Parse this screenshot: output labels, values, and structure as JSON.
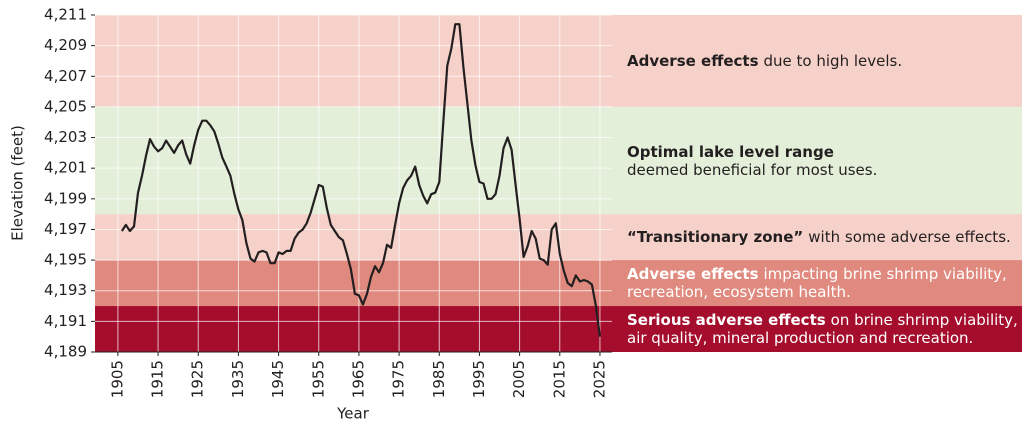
{
  "chart_data": {
    "type": "line",
    "x_label": "Year",
    "y_label": "Elevation (feet)",
    "color": "#231f20",
    "xlim": [
      1899.3,
      2028
    ],
    "ylim": [
      4189,
      4211
    ],
    "xticks": [
      1905,
      1915,
      1925,
      1935,
      1945,
      1955,
      1965,
      1975,
      1985,
      1995,
      2005,
      2015,
      2025
    ],
    "yticks": [
      {
        "value": 4189,
        "label": "4,189"
      },
      {
        "value": 4191,
        "label": "4,191"
      },
      {
        "value": 4193,
        "label": "4,193"
      },
      {
        "value": 4195,
        "label": "4,195"
      },
      {
        "value": 4197,
        "label": "4,197"
      },
      {
        "value": 4199,
        "label": "4,199"
      },
      {
        "value": 4201,
        "label": "4,201"
      },
      {
        "value": 4203,
        "label": "4,203"
      },
      {
        "value": 4205,
        "label": "4,205"
      },
      {
        "value": 4207,
        "label": "4,207"
      },
      {
        "value": 4209,
        "label": "4,209"
      },
      {
        "value": 4211,
        "label": "4,211"
      }
    ],
    "grid": true,
    "zones": [
      {
        "from": 4205,
        "to": 4211,
        "color": "#f6d1c9",
        "text_color": "#231f20",
        "bold": "Adverse effects",
        "text": "due to high levels.",
        "newline": false
      },
      {
        "from": 4198,
        "to": 4205,
        "color": "#e3efd9",
        "text_color": "#231f20",
        "bold": "Optimal lake level range",
        "text": "deemed beneficial for most uses.",
        "newline": true
      },
      {
        "from": 4195,
        "to": 4198,
        "color": "#f6d1c9",
        "text_color": "#231f20",
        "bold": "“Transitionary zone”",
        "text": "with some adverse effects.",
        "newline": false
      },
      {
        "from": 4192,
        "to": 4195,
        "color": "#e08a7f",
        "text_color": "#ffffff",
        "bold": "Adverse effects",
        "text": "impacting brine shrimp viability, recreation, ecosystem health.",
        "newline": false
      },
      {
        "from": 4189,
        "to": 4192,
        "color": "#a50d2d",
        "text_color": "#ffffff",
        "bold": "Serious adverse effects",
        "text": "on brine shrimp viability, air quality, mineral production and recreation.",
        "newline": false
      }
    ],
    "x": [
      1906,
      1907,
      1908,
      1909,
      1910,
      1911,
      1912,
      1913,
      1914,
      1915,
      1916,
      1917,
      1918,
      1919,
      1920,
      1921,
      1922,
      1923,
      1924,
      1925,
      1926,
      1927,
      1928,
      1929,
      1930,
      1931,
      1932,
      1933,
      1934,
      1935,
      1936,
      1937,
      1938,
      1939,
      1940,
      1941,
      1942,
      1943,
      1944,
      1945,
      1946,
      1947,
      1948,
      1949,
      1950,
      1951,
      1952,
      1953,
      1954,
      1955,
      1956,
      1957,
      1958,
      1959,
      1960,
      1961,
      1962,
      1963,
      1964,
      1965,
      1966,
      1967,
      1968,
      1969,
      1970,
      1971,
      1972,
      1973,
      1974,
      1975,
      1976,
      1977,
      1978,
      1979,
      1980,
      1981,
      1982,
      1983,
      1984,
      1985,
      1986,
      1987,
      1988,
      1989,
      1990,
      1991,
      1992,
      1993,
      1994,
      1995,
      1996,
      1997,
      1998,
      1999,
      2000,
      2001,
      2002,
      2003,
      2004,
      2005,
      2006,
      2007,
      2008,
      2009,
      2010,
      2011,
      2012,
      2013,
      2014,
      2015,
      2016,
      2017,
      2018,
      2019,
      2020,
      2021,
      2022,
      2023,
      2024,
      2025
    ],
    "values": [
      4196.9,
      4197.3,
      4196.9,
      4197.2,
      4199.4,
      4200.5,
      4201.8,
      4202.9,
      4202.4,
      4202.1,
      4202.3,
      4202.8,
      4202.4,
      4202.0,
      4202.5,
      4202.8,
      4201.9,
      4201.3,
      4202.5,
      4203.5,
      4204.1,
      4204.1,
      4203.8,
      4203.4,
      4202.6,
      4201.7,
      4201.1,
      4200.5,
      4199.3,
      4198.3,
      4197.6,
      4196.1,
      4195.1,
      4194.9,
      4195.5,
      4195.6,
      4195.5,
      4194.8,
      4194.8,
      4195.5,
      4195.4,
      4195.6,
      4195.6,
      4196.4,
      4196.8,
      4197.0,
      4197.4,
      4198.1,
      4199.0,
      4199.9,
      4199.8,
      4198.4,
      4197.3,
      4196.9,
      4196.5,
      4196.3,
      4195.4,
      4194.4,
      4192.8,
      4192.7,
      4192.1,
      4192.8,
      4193.9,
      4194.6,
      4194.2,
      4194.8,
      4196.0,
      4195.8,
      4197.3,
      4198.7,
      4199.7,
      4200.2,
      4200.5,
      4201.1,
      4199.9,
      4199.2,
      4198.7,
      4199.3,
      4199.4,
      4200.1,
      4204.0,
      4207.7,
      4208.8,
      4210.4,
      4210.4,
      4207.6,
      4205.2,
      4202.8,
      4201.2,
      4200.1,
      4200.0,
      4199.0,
      4199.0,
      4199.3,
      4200.5,
      4202.3,
      4203.0,
      4202.2,
      4199.9,
      4197.7,
      4195.2,
      4195.9,
      4196.9,
      4196.4,
      4195.1,
      4195.0,
      4194.7,
      4197.0,
      4197.4,
      4195.4,
      4194.3,
      4193.5,
      4193.3,
      4194.0,
      4193.6,
      4193.7,
      4193.6,
      4193.4,
      4192.0,
      4190.0
    ]
  }
}
